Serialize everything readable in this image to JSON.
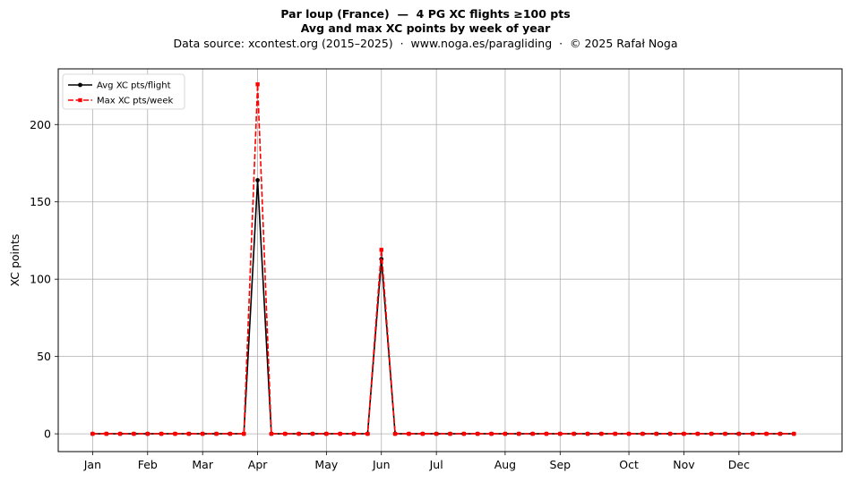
{
  "chart_data": {
    "type": "line",
    "title_line1": "Par loup (France)  —  4 PG XC flights ≥100 pts",
    "title_line2": "Avg and max XC points by week of year",
    "subtitle": "Data source: xcontest.org (2015–2025)  ·  www.noga.es/paragliding  ·  © 2025 Rafał Noga",
    "xlabel": "",
    "ylabel": "XC points",
    "xlim": [
      -2.5,
      54.5
    ],
    "ylim": [
      -11.5,
      236
    ],
    "grid": true,
    "legend_position": "top-left",
    "x_ticks": [
      {
        "label": "Jan",
        "week": 0
      },
      {
        "label": "Feb",
        "week": 4
      },
      {
        "label": "Mar",
        "week": 8
      },
      {
        "label": "Apr",
        "week": 12
      },
      {
        "label": "May",
        "week": 17
      },
      {
        "label": "Jun",
        "week": 21
      },
      {
        "label": "Jul",
        "week": 25
      },
      {
        "label": "Aug",
        "week": 30
      },
      {
        "label": "Sep",
        "week": 34
      },
      {
        "label": "Oct",
        "week": 39
      },
      {
        "label": "Nov",
        "week": 43
      },
      {
        "label": "Dec",
        "week": 47
      }
    ],
    "y_ticks": [
      0,
      50,
      100,
      150,
      200
    ],
    "x": [
      0,
      1,
      2,
      3,
      4,
      5,
      6,
      7,
      8,
      9,
      10,
      11,
      12,
      13,
      14,
      15,
      16,
      17,
      18,
      19,
      20,
      21,
      22,
      23,
      24,
      25,
      26,
      27,
      28,
      29,
      30,
      31,
      32,
      33,
      34,
      35,
      36,
      37,
      38,
      39,
      40,
      41,
      42,
      43,
      44,
      45,
      46,
      47,
      48,
      49,
      50,
      51
    ],
    "series": [
      {
        "name": "Avg XC pts/flight",
        "color": "#000000",
        "style": "solid",
        "marker": "circle",
        "values": [
          0,
          0,
          0,
          0,
          0,
          0,
          0,
          0,
          0,
          0,
          0,
          0,
          164,
          0,
          0,
          0,
          0,
          0,
          0,
          0,
          0,
          113,
          0,
          0,
          0,
          0,
          0,
          0,
          0,
          0,
          0,
          0,
          0,
          0,
          0,
          0,
          0,
          0,
          0,
          0,
          0,
          0,
          0,
          0,
          0,
          0,
          0,
          0,
          0,
          0,
          0,
          0
        ]
      },
      {
        "name": "Max XC pts/week",
        "color": "#ff0000",
        "style": "dashed",
        "marker": "square",
        "values": [
          0,
          0,
          0,
          0,
          0,
          0,
          0,
          0,
          0,
          0,
          0,
          0,
          226,
          0,
          0,
          0,
          0,
          0,
          0,
          0,
          0,
          119,
          0,
          0,
          0,
          0,
          0,
          0,
          0,
          0,
          0,
          0,
          0,
          0,
          0,
          0,
          0,
          0,
          0,
          0,
          0,
          0,
          0,
          0,
          0,
          0,
          0,
          0,
          0,
          0,
          0,
          0
        ]
      }
    ]
  }
}
